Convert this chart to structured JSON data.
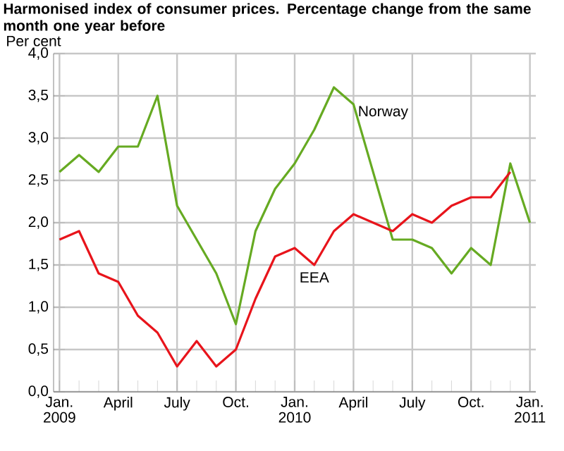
{
  "chart_data": {
    "type": "line",
    "title": "Harmonised index of consumer prices. Percentage change from the same month one year before",
    "ylabel": "Per cent",
    "categories": [
      "Jan. 2009",
      null,
      null,
      "April",
      null,
      null,
      "July",
      null,
      null,
      "Oct.",
      null,
      null,
      "Jan. 2010",
      null,
      null,
      "April",
      null,
      null,
      "July",
      null,
      null,
      "Oct.",
      null,
      null,
      "Jan. 2011"
    ],
    "series": [
      {
        "name": "Norway",
        "color": "#66aa22",
        "values": [
          2.6,
          2.8,
          2.6,
          2.9,
          2.9,
          3.5,
          2.2,
          1.8,
          1.4,
          0.8,
          1.9,
          2.4,
          2.7,
          3.1,
          3.6,
          3.4,
          2.6,
          1.8,
          1.8,
          1.7,
          1.4,
          1.7,
          1.5,
          2.7,
          2.0
        ]
      },
      {
        "name": "EEA",
        "color": "#e8141b",
        "values": [
          1.8,
          1.9,
          1.4,
          1.3,
          0.9,
          0.7,
          0.3,
          0.6,
          0.3,
          0.5,
          1.1,
          1.6,
          1.7,
          1.5,
          1.9,
          2.1,
          2.0,
          1.9,
          2.1,
          2.0,
          2.2,
          2.3,
          2.3,
          2.6,
          null
        ]
      }
    ],
    "ylim": [
      0,
      4
    ],
    "yticks": [
      {
        "value": 0,
        "label": "0,0"
      },
      {
        "value": 0.5,
        "label": "0,5"
      },
      {
        "value": 1,
        "label": "1,0"
      },
      {
        "value": 1.5,
        "label": "1,5"
      },
      {
        "value": 2,
        "label": "2,0"
      },
      {
        "value": 2.5,
        "label": "2,5"
      },
      {
        "value": 3,
        "label": "3,0"
      },
      {
        "value": 3.5,
        "label": "3,5"
      },
      {
        "value": 4,
        "label": "4,0"
      }
    ],
    "grid": true,
    "legend": false,
    "marker": "none",
    "line_style": "solid"
  }
}
